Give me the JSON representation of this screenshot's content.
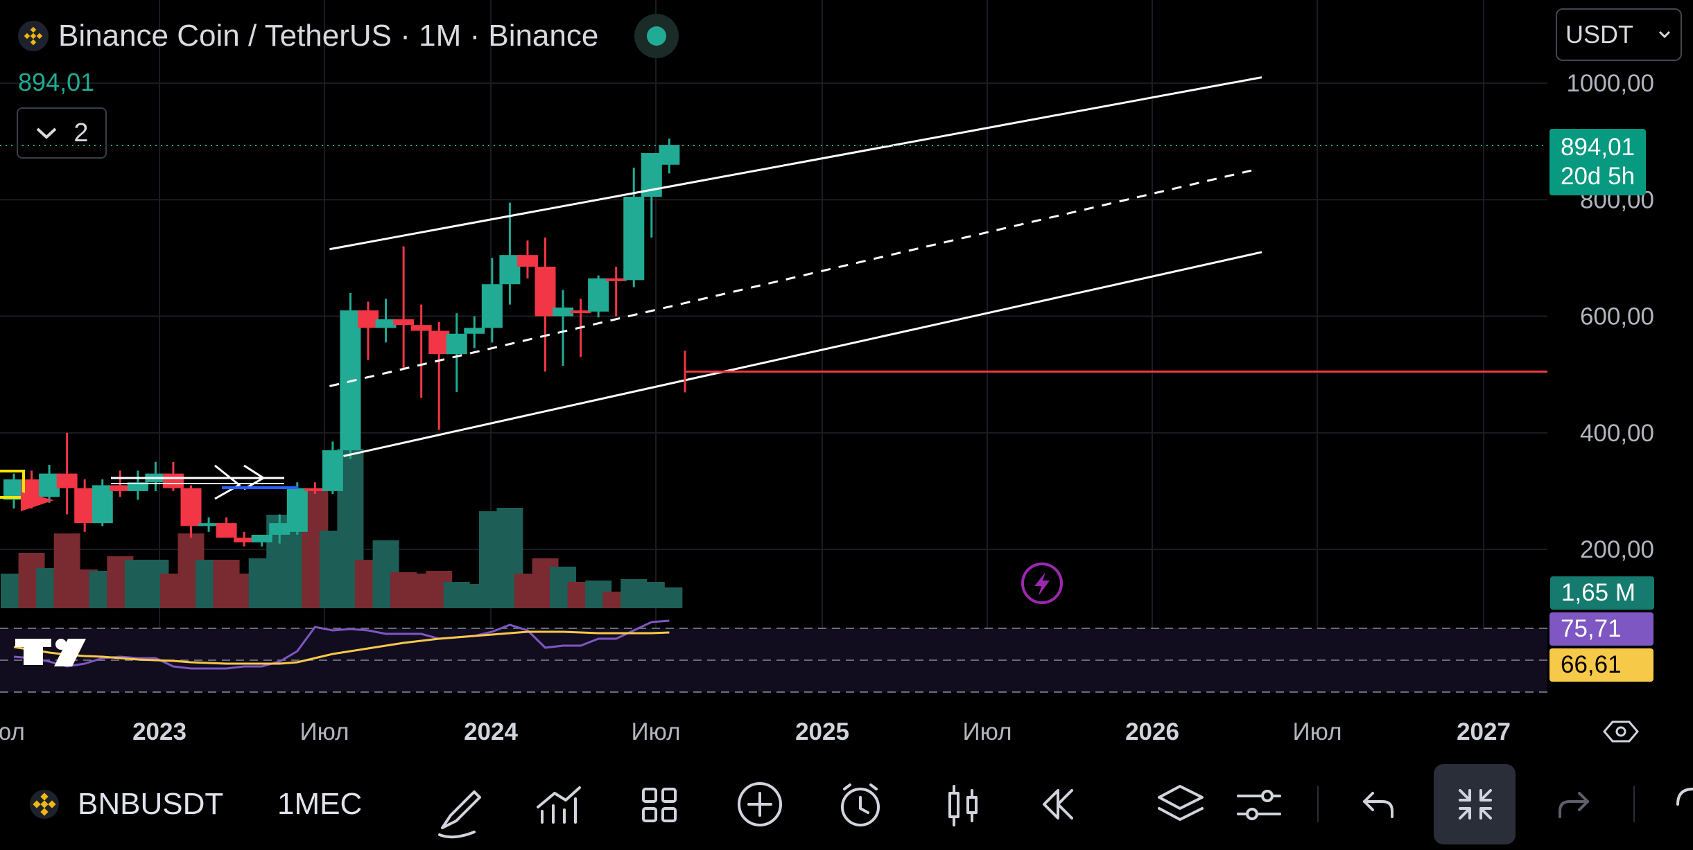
{
  "header": {
    "title": "Binance Coin / TetherUS · 1M · Binance",
    "last_price": "894,01",
    "collapse_count": "2",
    "currency": "USDT"
  },
  "price_tag": {
    "price": "894,01",
    "countdown": "20d 5h"
  },
  "volume_tag": "1,65 M",
  "rsi_tags": {
    "rsi": "75,71",
    "rsi_ma": "66,61"
  },
  "colors": {
    "up": "#22ab94",
    "down": "#f23645",
    "rsi": "#7e57c2",
    "rsi_ma": "#f7c948",
    "support": "#f23645"
  },
  "chart_data": {
    "type": "candlestick",
    "y_axis": {
      "ticks": [
        200,
        400,
        600,
        800,
        1000
      ],
      "tick_labels": [
        "200,00",
        "400,00",
        "600,00",
        "800,00",
        "1000,00"
      ]
    },
    "x_axis": {
      "tick_labels": [
        "юл",
        "2023",
        "Июл",
        "2024",
        "Июл",
        "2025",
        "Июл",
        "2026",
        "Июл",
        "2027"
      ]
    },
    "candles": [
      {
        "o": 285,
        "h": 330,
        "l": 270,
        "c": 320
      },
      {
        "o": 320,
        "h": 335,
        "l": 270,
        "c": 285
      },
      {
        "o": 290,
        "h": 345,
        "l": 280,
        "c": 330
      },
      {
        "o": 330,
        "h": 400,
        "l": 260,
        "c": 305
      },
      {
        "o": 305,
        "h": 320,
        "l": 230,
        "c": 245
      },
      {
        "o": 245,
        "h": 320,
        "l": 240,
        "c": 310
      },
      {
        "o": 310,
        "h": 335,
        "l": 290,
        "c": 300
      },
      {
        "o": 300,
        "h": 335,
        "l": 285,
        "c": 315
      },
      {
        "o": 315,
        "h": 350,
        "l": 300,
        "c": 330
      },
      {
        "o": 330,
        "h": 350,
        "l": 300,
        "c": 305
      },
      {
        "o": 305,
        "h": 310,
        "l": 220,
        "c": 240
      },
      {
        "o": 240,
        "h": 255,
        "l": 230,
        "c": 245
      },
      {
        "o": 245,
        "h": 255,
        "l": 220,
        "c": 220
      },
      {
        "o": 220,
        "h": 230,
        "l": 205,
        "c": 212
      },
      {
        "o": 212,
        "h": 225,
        "l": 205,
        "c": 225
      },
      {
        "o": 225,
        "h": 260,
        "l": 210,
        "c": 245
      },
      {
        "o": 230,
        "h": 315,
        "l": 225,
        "c": 305
      },
      {
        "o": 305,
        "h": 315,
        "l": 295,
        "c": 300
      },
      {
        "o": 300,
        "h": 385,
        "l": 295,
        "c": 370
      },
      {
        "o": 370,
        "h": 640,
        "l": 355,
        "c": 610
      },
      {
        "o": 610,
        "h": 625,
        "l": 525,
        "c": 580
      },
      {
        "o": 580,
        "h": 630,
        "l": 555,
        "c": 595
      },
      {
        "o": 595,
        "h": 720,
        "l": 510,
        "c": 585
      },
      {
        "o": 585,
        "h": 620,
        "l": 460,
        "c": 575
      },
      {
        "o": 575,
        "h": 590,
        "l": 405,
        "c": 535
      },
      {
        "o": 535,
        "h": 605,
        "l": 470,
        "c": 570
      },
      {
        "o": 570,
        "h": 600,
        "l": 545,
        "c": 580
      },
      {
        "o": 580,
        "h": 700,
        "l": 555,
        "c": 655
      },
      {
        "o": 655,
        "h": 795,
        "l": 620,
        "c": 705
      },
      {
        "o": 705,
        "h": 730,
        "l": 665,
        "c": 685
      },
      {
        "o": 685,
        "h": 735,
        "l": 505,
        "c": 600
      },
      {
        "o": 600,
        "h": 645,
        "l": 515,
        "c": 615
      },
      {
        "o": 610,
        "h": 630,
        "l": 530,
        "c": 608
      },
      {
        "o": 608,
        "h": 670,
        "l": 598,
        "c": 665
      },
      {
        "o": 665,
        "h": 685,
        "l": 600,
        "c": 662
      },
      {
        "o": 662,
        "h": 855,
        "l": 650,
        "c": 805
      },
      {
        "o": 805,
        "h": 880,
        "l": 735,
        "c": 880
      },
      {
        "o": 860,
        "h": 905,
        "l": 845,
        "c": 894
      }
    ],
    "channel": {
      "upper": [
        [
          19,
          715
        ],
        [
          46,
          1010
        ]
      ],
      "middle": [
        [
          19,
          480
        ],
        [
          46,
          850
        ]
      ],
      "lower": [
        [
          19,
          360
        ],
        [
          46,
          710
        ]
      ]
    },
    "support_level": 505
  },
  "toolbar": {
    "symbol": "BNBUSDT",
    "interval": "1МЕС"
  }
}
